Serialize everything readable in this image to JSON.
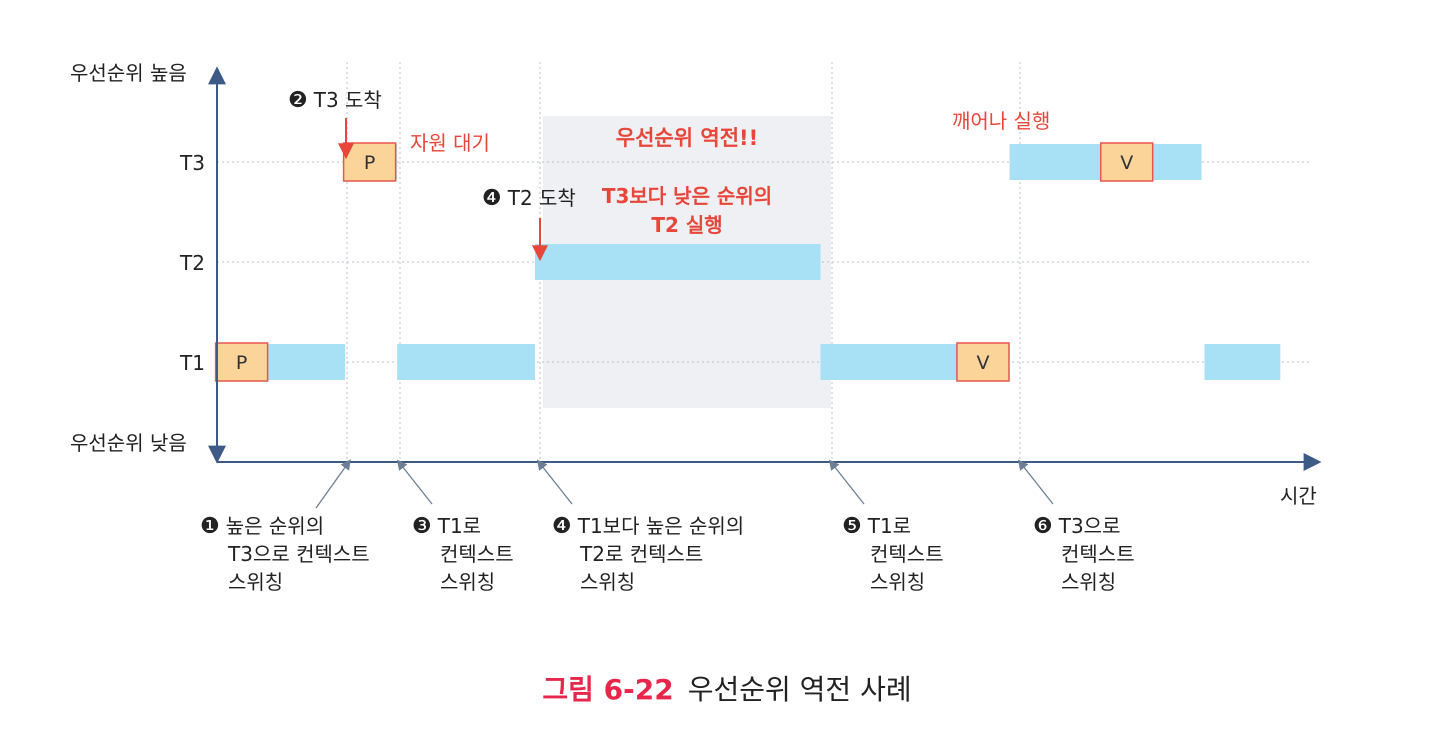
{
  "axes": {
    "y_high_label": "우선순위 높음",
    "y_low_label": "우선순위 낮음",
    "x_label": "시간"
  },
  "rows": [
    "T3",
    "T2",
    "T1"
  ],
  "colors": {
    "run_bar": "#a8e0f5",
    "resource_box_fill": "#fbd49a",
    "resource_box_border": "#e8564f",
    "red_text": "#e8463a",
    "inversion_region": "#eef0f3",
    "axis": "#3c5a85"
  },
  "timeline": {
    "time_range": [
      0,
      1100
    ],
    "t1_segments": [
      [
        0,
        130
      ],
      [
        183,
        323
      ],
      [
        613,
        805
      ],
      [
        1003,
        1080
      ]
    ],
    "t2_segments": [
      [
        323,
        613
      ]
    ],
    "t3_segments": [
      [
        130,
        183
      ],
      [
        805,
        1000
      ]
    ],
    "inversion_span": [
      323,
      613
    ],
    "resource_ops": [
      {
        "task": "T1",
        "label": "P",
        "time": 25
      },
      {
        "task": "T3",
        "label": "P",
        "time": 155
      },
      {
        "task": "T1",
        "label": "V",
        "time": 778
      },
      {
        "task": "T3",
        "label": "V",
        "time": 924
      }
    ]
  },
  "annotations": {
    "arrival_t3": {
      "num": "❷",
      "text": "T3 도착"
    },
    "arrival_t2": {
      "num": "❹",
      "text": "T2 도착"
    },
    "wait": "자원 대기",
    "inversion_title": "우선순위 역전!!",
    "inversion_desc_1": "T3보다 낮은 순위의",
    "inversion_desc_2": "T2 실행",
    "wake": "깨어나 실행"
  },
  "events": [
    {
      "num": "❶",
      "lines": [
        "높은 순위의",
        "T3으로 컨텍스트",
        "스위칭"
      ]
    },
    {
      "num": "❸",
      "lines": [
        "T1로",
        "컨텍스트",
        "스위칭"
      ]
    },
    {
      "num": "❹",
      "lines": [
        "T1보다 높은 순위의",
        "T2로 컨텍스트",
        "스위칭"
      ]
    },
    {
      "num": "❺",
      "lines": [
        "T1로",
        "컨텍스트",
        "스위칭"
      ]
    },
    {
      "num": "❻",
      "lines": [
        "T3으로",
        "컨텍스트",
        "스위칭"
      ]
    }
  ],
  "caption": {
    "number": "그림 6-22",
    "title": "우선순위 역전 사례"
  }
}
